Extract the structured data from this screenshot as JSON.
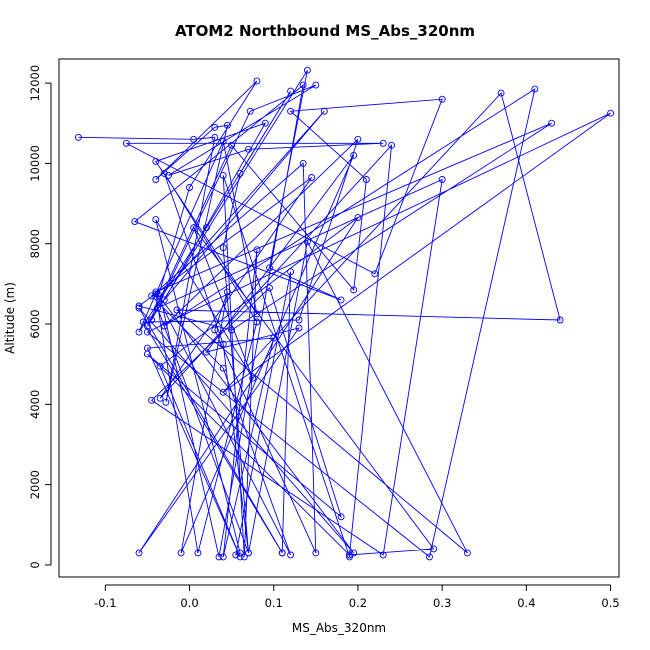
{
  "chart_data": {
    "type": "line",
    "title": "ATOM2 Northbound MS_Abs_320nm",
    "xlabel": "MS_Abs_320nm",
    "ylabel": "Altitude (m)",
    "xlim": [
      -0.155,
      0.51
    ],
    "ylim": [
      -300,
      12600
    ],
    "x_ticks": [
      -0.1,
      0.0,
      0.1,
      0.2,
      0.3,
      0.4,
      0.5
    ],
    "x_tick_labels": [
      "-0.1",
      "0.0",
      "0.1",
      "0.2",
      "0.3",
      "0.4",
      "0.5"
    ],
    "y_ticks": [
      0,
      2000,
      4000,
      6000,
      8000,
      10000,
      12000
    ],
    "y_tick_labels": [
      "0",
      "2000",
      "4000",
      "6000",
      "8000",
      "10000",
      "12000"
    ],
    "grid": false,
    "legend": "none",
    "colors": {
      "series": "#0000ff",
      "axes": "#000000",
      "background": "#ffffff"
    },
    "series": [
      {
        "x": [
          -0.132,
          0.005,
          0.03,
          -0.028,
          0.045,
          0.03,
          -0.04,
          0.08,
          0.0,
          -0.045,
          0.072,
          0.15,
          -0.025,
          0.07,
          0.23,
          -0.075,
          0.22,
          0.3,
          0.12,
          0.21,
          0.195,
          0.05,
          -0.05,
          0.14,
          0.095,
          0.18,
          -0.065,
          0.135,
          0.035,
          -0.035,
          0.16,
          -0.03,
          0.09,
          -0.04,
          0.08,
          0.04,
          -0.06,
          0.02,
          0.12,
          0.06,
          0.04,
          0.07,
          0.14,
          0.33,
          -0.015,
          0.44,
          0.37,
          0.04,
          0.5,
          -0.05,
          0.285,
          0.41,
          -0.03,
          0.2,
          0.13,
          -0.055,
          0.11,
          -0.06,
          0.195,
          -0.04,
          0.43,
          0.05,
          -0.06,
          0.145,
          -0.035,
          0.24,
          0.19,
          -0.05,
          0.18,
          0.095,
          -0.045,
          0.23,
          0.3,
          -0.038,
          0.07,
          0.04,
          -0.03,
          0.08,
          0.01,
          -0.04,
          0.12,
          0.04,
          -0.045,
          0.135,
          0.15,
          0.03,
          0.045,
          -0.01,
          0.195,
          0.02,
          0.13,
          -0.06,
          0.2,
          -0.035,
          0.06,
          -0.05,
          0.1,
          0.04,
          0.08,
          0.065,
          0.04,
          0.19,
          0.19,
          0.29,
          0.005,
          0.075,
          -0.04,
          0.06,
          0.055,
          0.12,
          0.11
        ],
        "y": [
          10650,
          10600,
          10650,
          4050,
          10950,
          10900,
          9600,
          12050,
          9400,
          6100,
          11300,
          11950,
          9700,
          10350,
          10500,
          10500,
          7250,
          11600,
          11300,
          9600,
          6850,
          10450,
          5950,
          12320,
          7400,
          6600,
          8550,
          11950,
          200,
          6700,
          11300,
          6600,
          11000,
          10050,
          6250,
          10550,
          5800,
          8400,
          11800,
          9750,
          7900,
          300,
          8050,
          300,
          6350,
          6100,
          11750,
          4300,
          11250,
          5800,
          200,
          11850,
          5950,
          10600,
          6100,
          6050,
          300,
          6400,
          300,
          6800,
          11000,
          5850,
          6450,
          9650,
          4150,
          10450,
          250,
          5250,
          1200,
          6900,
          4100,
          250,
          9600,
          6400,
          300,
          5500,
          9750,
          6050,
          300,
          6750,
          250,
          4900,
          6700,
          10000,
          300,
          5850,
          6800,
          300,
          10200,
          5300,
          5900,
          300,
          8650,
          4950,
          200,
          5400,
          5650,
          200,
          7850,
          200,
          9700,
          200,
          250,
          400,
          8400,
          4650,
          8600,
          300,
          250,
          7300,
          300
        ]
      }
    ]
  }
}
